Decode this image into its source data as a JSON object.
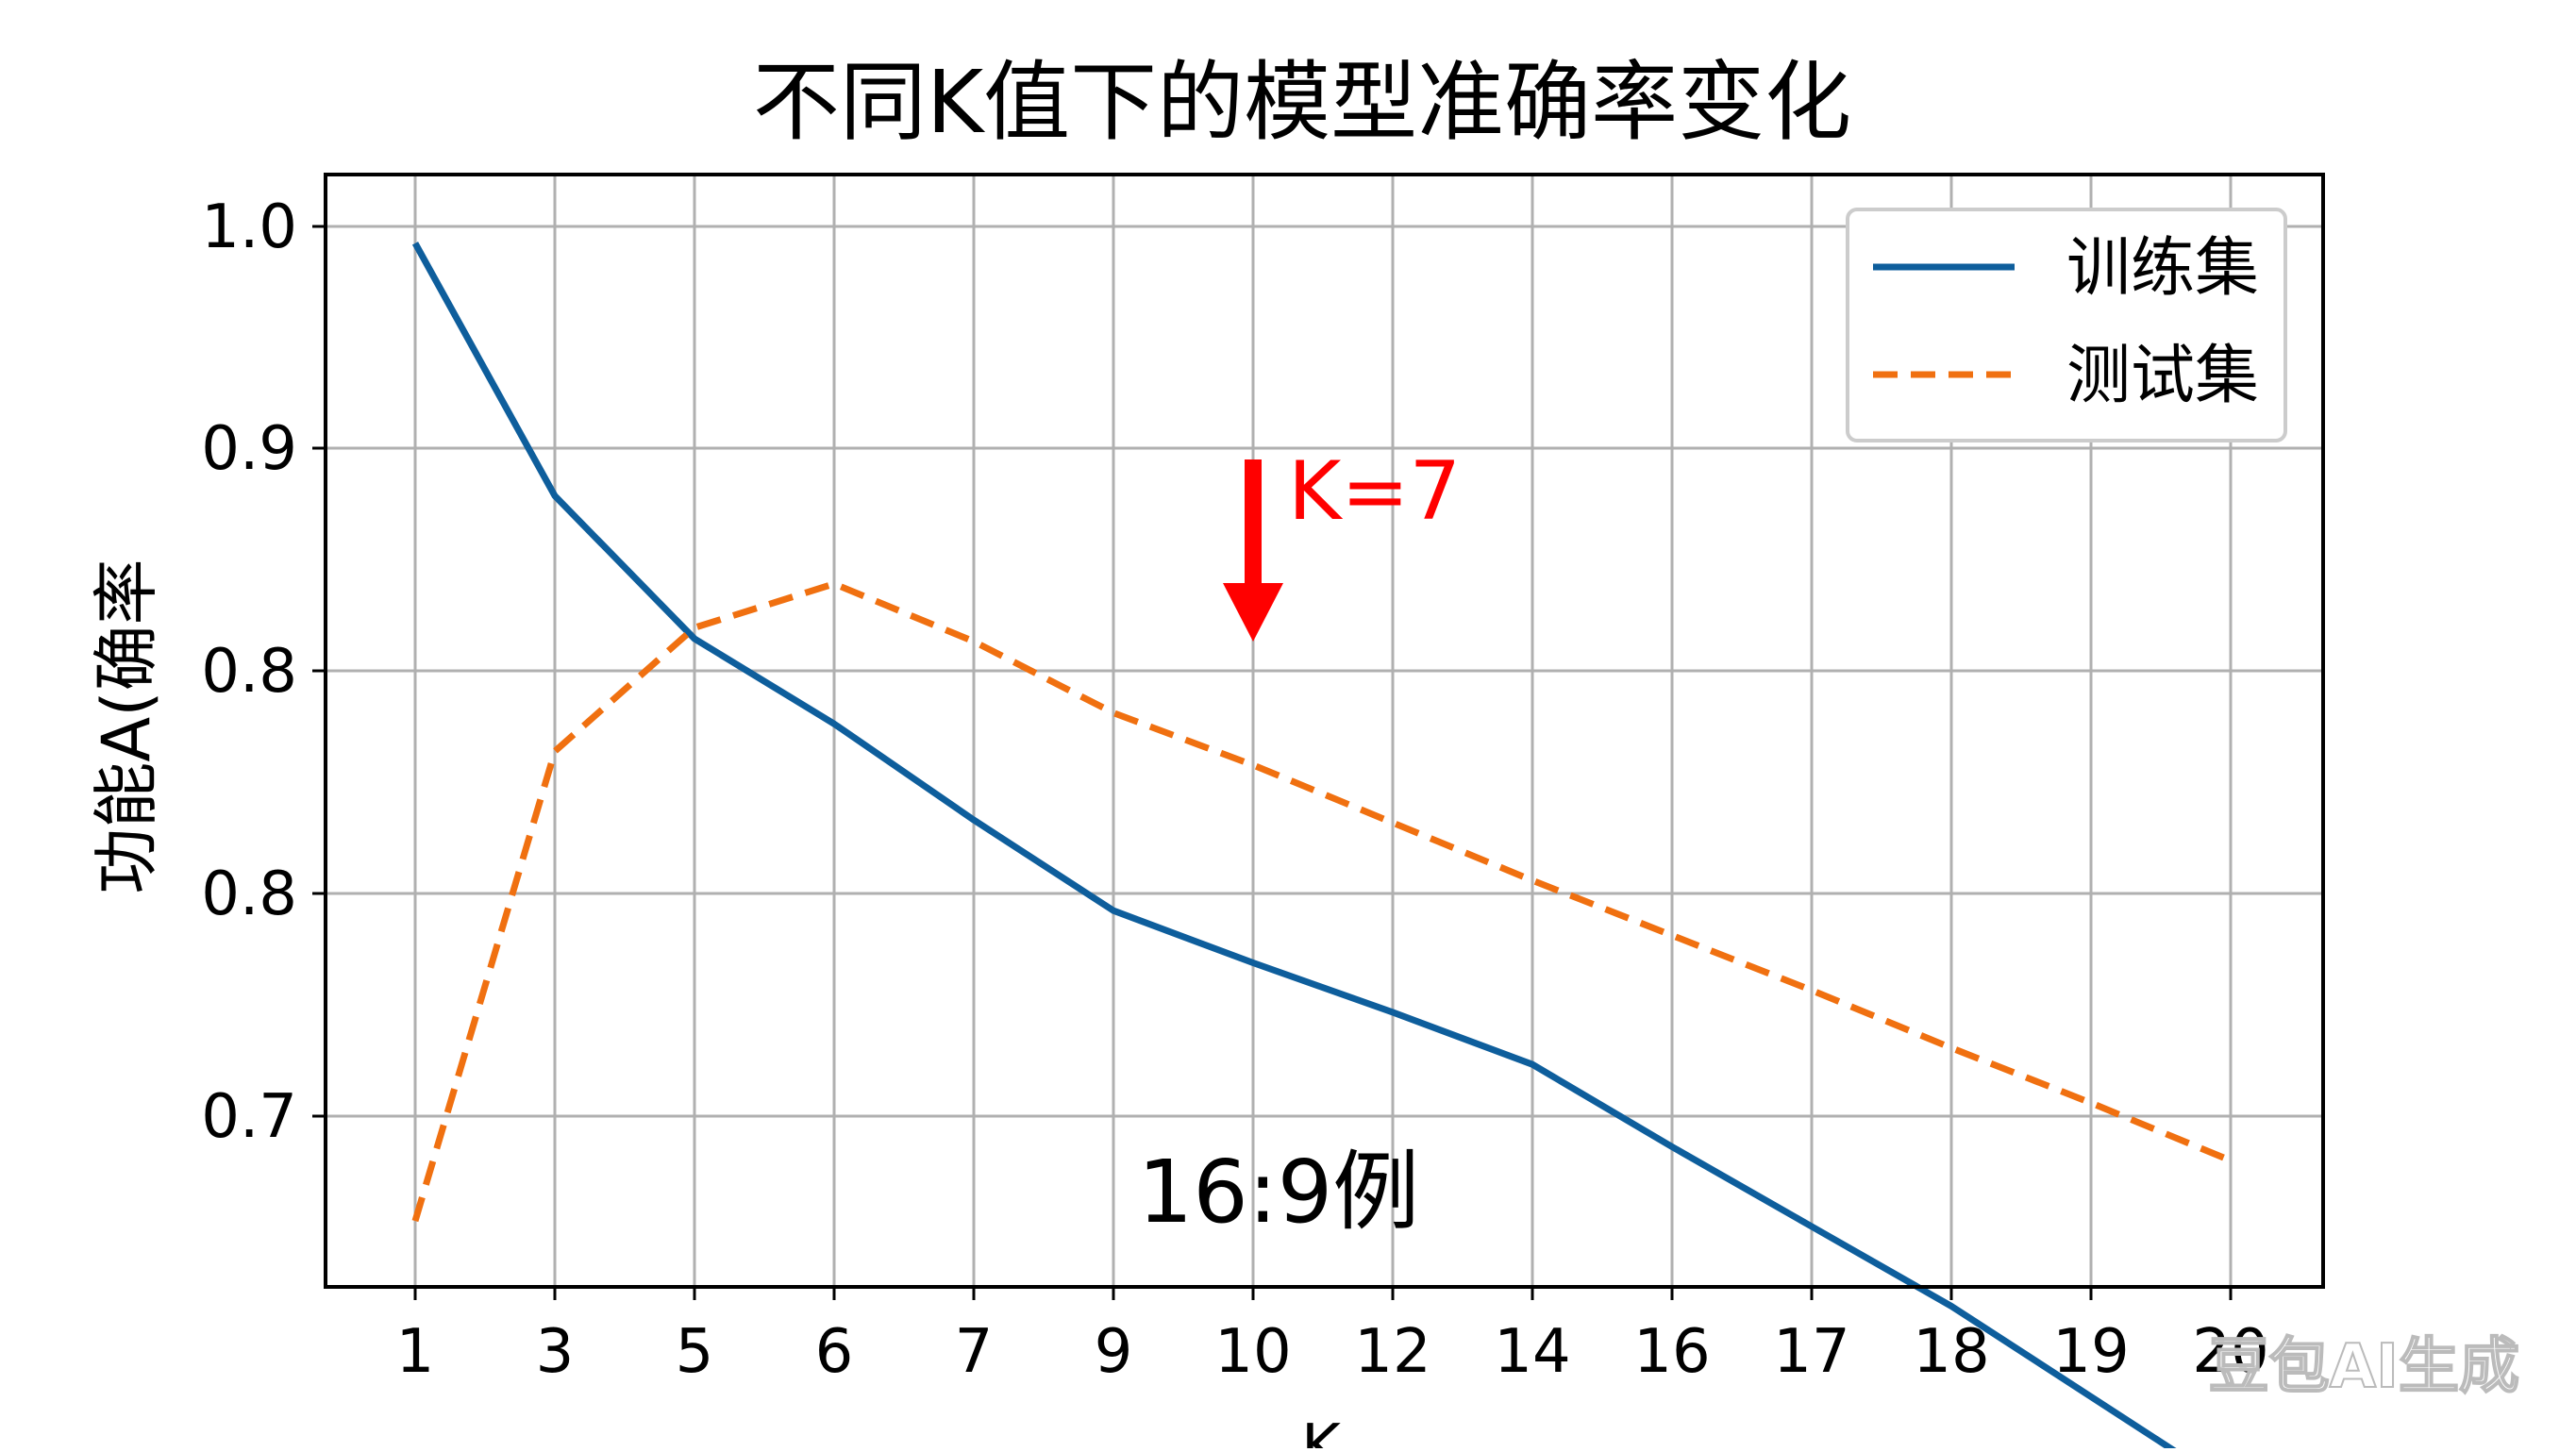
{
  "chart_data": {
    "type": "line",
    "title": "不同K值下的模型准确率变化",
    "xlabel": "K",
    "ylabel": "功能A(确率",
    "categories": [
      "1",
      "3",
      "5",
      "6",
      "7",
      "9",
      "10",
      "12",
      "14",
      "16",
      "17",
      "18",
      "19",
      "20"
    ],
    "y_tick_labels": [
      "1.0",
      "0.9",
      "0.8",
      "0.8",
      "0.7"
    ],
    "ylim": [
      0.62,
      1.025
    ],
    "grid": true,
    "legend_position": "top-right",
    "series": [
      {
        "name": "训练集",
        "color": "#0e5e9c",
        "style": "solid",
        "values": [
          1.0,
          0.908,
          0.856,
          0.825,
          0.79,
          0.757,
          0.738,
          0.72,
          0.701,
          0.671,
          0.642,
          0.613,
          0.58,
          0.547
        ]
      },
      {
        "name": "测试集",
        "color": "#f07010",
        "style": "dashed",
        "values": [
          0.644,
          0.815,
          0.86,
          0.876,
          0.855,
          0.829,
          0.81,
          0.789,
          0.768,
          0.748,
          0.728,
          0.707,
          0.687,
          0.666
        ]
      }
    ],
    "annotations": [
      {
        "text": "K=7",
        "color": "#ff0000",
        "x_category": "10",
        "y": 0.81
      },
      {
        "text": "16:9例",
        "color": "#000000"
      }
    ]
  },
  "watermark": "豆包AI生成",
  "colors": {
    "grid": "#b0b0b0",
    "axis": "#000000",
    "legend_border": "#cccccc"
  }
}
